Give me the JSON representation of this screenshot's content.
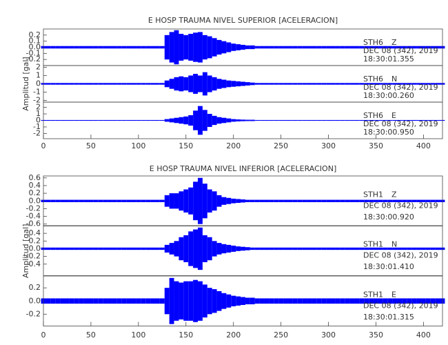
{
  "chart_data": [
    {
      "type": "envelope",
      "title": "E HOSP TRAUMA NIVEL SUPERIOR [ACELERACION]",
      "ylabel": "Amplitud [gal]",
      "xlim": [
        0,
        420
      ],
      "xticks": [
        0,
        50,
        100,
        150,
        200,
        250,
        300,
        350,
        400
      ],
      "x": [
        0,
        5,
        10,
        15,
        20,
        25,
        30,
        35,
        40,
        45,
        50,
        55,
        60,
        65,
        70,
        75,
        80,
        85,
        90,
        95,
        100,
        105,
        110,
        115,
        120,
        125,
        130,
        135,
        140,
        145,
        150,
        155,
        160,
        165,
        170,
        175,
        180,
        185,
        190,
        195,
        200,
        205,
        210,
        215,
        220,
        225,
        230,
        235,
        240,
        245,
        250,
        255,
        260,
        265,
        270,
        275,
        280,
        285,
        290,
        295,
        300,
        305,
        310,
        315,
        320,
        325,
        330,
        335,
        340,
        345,
        350,
        355,
        360,
        365,
        370,
        375,
        380,
        385,
        390,
        395,
        400,
        405,
        410,
        415,
        420
      ],
      "panels": [
        {
          "station": "STH6",
          "component": "Z",
          "date": "DEC 08 (342), 2019",
          "time": "18:30:01.355",
          "color": "#0000ff",
          "ylim": [
            -0.3,
            0.3
          ],
          "yticks": [
            -0.2,
            -0.1,
            {
              "value": 0,
              "label": "0.0"
            },
            0.1,
            0.2
          ],
          "values": [
            0.02,
            0.02,
            0.02,
            0.02,
            0.02,
            0.02,
            0.02,
            0.02,
            0.02,
            0.02,
            0.02,
            0.02,
            0.02,
            0.02,
            0.02,
            0.02,
            0.02,
            0.02,
            0.02,
            0.02,
            0.02,
            0.02,
            0.02,
            0.02,
            0.02,
            0.02,
            0.2,
            0.25,
            0.28,
            0.22,
            0.2,
            0.22,
            0.24,
            0.25,
            0.2,
            0.18,
            0.15,
            0.12,
            0.1,
            0.08,
            0.06,
            0.05,
            0.04,
            0.03,
            0.03,
            0.02,
            0.02,
            0.02,
            0.02,
            0.02,
            0.02,
            0.02,
            0.02,
            0.02,
            0.02,
            0.02,
            0.02,
            0.02,
            0.02,
            0.02,
            0.02,
            0.02,
            0.02,
            0.02,
            0.02,
            0.02,
            0.02,
            0.02,
            0.02,
            0.02,
            0.02,
            0.02,
            0.02,
            0.02,
            0.02,
            0.02,
            0.02,
            0.02,
            0.02,
            0.02,
            0.02,
            0.02,
            0.02,
            0.02,
            0.02
          ]
        },
        {
          "station": "STH6",
          "component": "N",
          "date": "DEC 08 (342), 2019",
          "time": "18:30:00.260",
          "color": "#0000ff",
          "ylim": [
            -2.2,
            2.2
          ],
          "yticks": [
            -2,
            -1,
            0,
            1,
            2
          ],
          "values": [
            0.1,
            0.1,
            0.1,
            0.1,
            0.1,
            0.1,
            0.1,
            0.1,
            0.1,
            0.1,
            0.1,
            0.1,
            0.1,
            0.1,
            0.1,
            0.1,
            0.1,
            0.1,
            0.1,
            0.1,
            0.1,
            0.1,
            0.1,
            0.1,
            0.1,
            0.1,
            0.4,
            0.6,
            0.8,
            0.9,
            0.8,
            1.0,
            1.2,
            1.0,
            1.4,
            1.0,
            0.8,
            0.6,
            0.5,
            0.4,
            0.35,
            0.3,
            0.25,
            0.2,
            0.15,
            0.1,
            0.1,
            0.1,
            0.1,
            0.1,
            0.1,
            0.1,
            0.1,
            0.1,
            0.1,
            0.1,
            0.1,
            0.1,
            0.1,
            0.1,
            0.1,
            0.1,
            0.1,
            0.1,
            0.1,
            0.1,
            0.1,
            0.1,
            0.1,
            0.1,
            0.1,
            0.1,
            0.1,
            0.1,
            0.1,
            0.1,
            0.1,
            0.1,
            0.1,
            0.1,
            0.1,
            0.1,
            0.1,
            0.1,
            0.1
          ]
        },
        {
          "station": "STH6",
          "component": "E",
          "date": "DEC 08 (342), 2019",
          "time": "18:30:00.950",
          "color": "#0000ff",
          "ylim": [
            -2.8,
            2.8
          ],
          "yticks": [
            -2,
            -1,
            0,
            1,
            2
          ],
          "values": [
            0.06,
            0.06,
            0.06,
            0.06,
            0.06,
            0.06,
            0.06,
            0.06,
            0.06,
            0.06,
            0.06,
            0.06,
            0.06,
            0.06,
            0.06,
            0.06,
            0.06,
            0.06,
            0.06,
            0.06,
            0.06,
            0.06,
            0.06,
            0.06,
            0.06,
            0.06,
            0.2,
            0.3,
            0.4,
            0.5,
            0.6,
            0.8,
            1.5,
            2.2,
            1.6,
            1.0,
            0.7,
            0.5,
            0.4,
            0.3,
            0.2,
            0.15,
            0.12,
            0.1,
            0.1,
            0.06,
            0.06,
            0.06,
            0.06,
            0.06,
            0.06,
            0.06,
            0.06,
            0.06,
            0.06,
            0.06,
            0.06,
            0.06,
            0.06,
            0.06,
            0.06,
            0.06,
            0.06,
            0.06,
            0.06,
            0.06,
            0.06,
            0.06,
            0.06,
            0.06,
            0.06,
            0.06,
            0.06,
            0.06,
            0.06,
            0.06,
            0.06,
            0.06,
            0.06,
            0.06,
            0.06,
            0.06,
            0.06,
            0.06,
            0.06
          ]
        }
      ]
    },
    {
      "type": "envelope",
      "title": "E HOSP TRAUMA NIVEL INFERIOR [ACELERACION]",
      "ylabel": "Amplitud [gal]",
      "xlim": [
        0,
        420
      ],
      "xticks": [
        0,
        50,
        100,
        150,
        200,
        250,
        300,
        350,
        400
      ],
      "x": [
        0,
        5,
        10,
        15,
        20,
        25,
        30,
        35,
        40,
        45,
        50,
        55,
        60,
        65,
        70,
        75,
        80,
        85,
        90,
        95,
        100,
        105,
        110,
        115,
        120,
        125,
        130,
        135,
        140,
        145,
        150,
        155,
        160,
        165,
        170,
        175,
        180,
        185,
        190,
        195,
        200,
        205,
        210,
        215,
        220,
        225,
        230,
        235,
        240,
        245,
        250,
        255,
        260,
        265,
        270,
        275,
        280,
        285,
        290,
        295,
        300,
        305,
        310,
        315,
        320,
        325,
        330,
        335,
        340,
        345,
        350,
        355,
        360,
        365,
        370,
        375,
        380,
        385,
        390,
        395,
        400,
        405,
        410,
        415,
        420
      ],
      "panels": [
        {
          "station": "STH1",
          "component": "Z",
          "date": "DEC 08 (342), 2019",
          "time": "18:30:00.920",
          "color": "#0000ff",
          "ylim": [
            -0.65,
            0.65
          ],
          "yticks": [
            -0.6,
            -0.4,
            -0.2,
            {
              "value": 0,
              "label": "0.0"
            },
            0.2,
            0.4,
            0.6
          ],
          "values": [
            0.03,
            0.03,
            0.03,
            0.03,
            0.03,
            0.03,
            0.03,
            0.03,
            0.03,
            0.03,
            0.03,
            0.03,
            0.03,
            0.03,
            0.03,
            0.03,
            0.03,
            0.03,
            0.03,
            0.03,
            0.03,
            0.03,
            0.03,
            0.03,
            0.03,
            0.03,
            0.15,
            0.2,
            0.2,
            0.25,
            0.3,
            0.35,
            0.5,
            0.6,
            0.45,
            0.3,
            0.25,
            0.15,
            0.1,
            0.08,
            0.06,
            0.05,
            0.04,
            0.03,
            0.03,
            0.03,
            0.03,
            0.03,
            0.03,
            0.03,
            0.03,
            0.03,
            0.03,
            0.03,
            0.03,
            0.03,
            0.03,
            0.03,
            0.03,
            0.03,
            0.03,
            0.03,
            0.03,
            0.03,
            0.03,
            0.03,
            0.03,
            0.03,
            0.03,
            0.03,
            0.03,
            0.03,
            0.03,
            0.03,
            0.03,
            0.03,
            0.03,
            0.03,
            0.03,
            0.03,
            0.03,
            0.03,
            0.03,
            0.03,
            0.03
          ]
        },
        {
          "station": "STH1",
          "component": "N",
          "date": "DEC 08 (342), 2019",
          "time": "18:30:01.410",
          "color": "#0000ff",
          "ylim": [
            -0.7,
            0.6
          ],
          "yticks": [
            -0.4,
            -0.2,
            {
              "value": 0,
              "label": "0.0"
            },
            0.2,
            0.4
          ],
          "values": [
            0.03,
            0.03,
            0.03,
            0.03,
            0.03,
            0.03,
            0.03,
            0.03,
            0.03,
            0.03,
            0.03,
            0.03,
            0.03,
            0.03,
            0.03,
            0.03,
            0.03,
            0.03,
            0.03,
            0.03,
            0.03,
            0.03,
            0.03,
            0.03,
            0.03,
            0.03,
            0.1,
            0.15,
            0.2,
            0.3,
            0.35,
            0.45,
            0.5,
            0.55,
            0.35,
            0.3,
            0.2,
            0.15,
            0.12,
            0.1,
            0.08,
            0.06,
            0.05,
            0.04,
            0.03,
            0.03,
            0.03,
            0.03,
            0.03,
            0.03,
            0.03,
            0.03,
            0.03,
            0.03,
            0.03,
            0.03,
            0.03,
            0.03,
            0.03,
            0.03,
            0.03,
            0.03,
            0.03,
            0.03,
            0.03,
            0.03,
            0.03,
            0.03,
            0.03,
            0.03,
            0.03,
            0.03,
            0.03,
            0.03,
            0.03,
            0.03,
            0.03,
            0.03,
            0.03,
            0.03,
            0.03,
            0.03,
            0.03,
            0.03,
            0.03
          ]
        },
        {
          "station": "STH1",
          "component": "E",
          "date": "DEC 08 (342), 2019",
          "time": "18:30:01.315",
          "color": "#0000ff",
          "ylim": [
            -0.38,
            0.38
          ],
          "yticks": [
            -0.2,
            {
              "value": 0,
              "label": "0.0"
            },
            0.2
          ],
          "values": [
            0.04,
            0.04,
            0.04,
            0.04,
            0.04,
            0.04,
            0.04,
            0.04,
            0.04,
            0.04,
            0.04,
            0.04,
            0.04,
            0.04,
            0.04,
            0.04,
            0.04,
            0.04,
            0.04,
            0.04,
            0.04,
            0.04,
            0.04,
            0.04,
            0.04,
            0.04,
            0.2,
            0.35,
            0.3,
            0.28,
            0.3,
            0.3,
            0.32,
            0.3,
            0.25,
            0.2,
            0.18,
            0.15,
            0.12,
            0.1,
            0.08,
            0.07,
            0.06,
            0.05,
            0.05,
            0.04,
            0.04,
            0.04,
            0.04,
            0.04,
            0.04,
            0.04,
            0.04,
            0.04,
            0.04,
            0.04,
            0.04,
            0.04,
            0.04,
            0.04,
            0.04,
            0.04,
            0.04,
            0.04,
            0.04,
            0.04,
            0.04,
            0.04,
            0.04,
            0.04,
            0.04,
            0.04,
            0.04,
            0.04,
            0.04,
            0.04,
            0.04,
            0.04,
            0.04,
            0.04,
            0.04,
            0.04,
            0.04,
            0.04,
            0.04
          ]
        }
      ]
    }
  ]
}
